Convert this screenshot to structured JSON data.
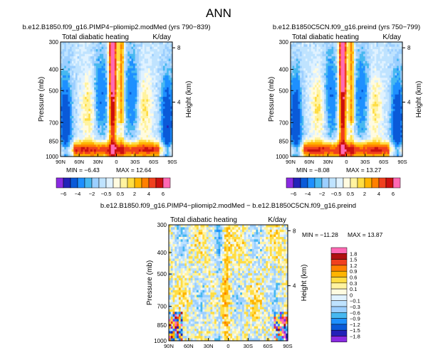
{
  "season": "ANN",
  "colors": {
    "scale_main": [
      "#8a2be2",
      "#2222b8",
      "#0a5ad8",
      "#1e90ff",
      "#47b8f0",
      "#9ccfff",
      "#bfe3ff",
      "#e0f2ff",
      "#fffbe0",
      "#fff3a0",
      "#ffdd44",
      "#ffb400",
      "#ff8000",
      "#f0401e",
      "#cc1010",
      "#ff69b4"
    ],
    "scale_diff": [
      "#8a2be2",
      "#2222b8",
      "#0a5ad8",
      "#1e90ff",
      "#47b8f0",
      "#9ccfff",
      "#bfe3ff",
      "#e0f2ff",
      "#fffbe0",
      "#fff3a0",
      "#ffdd44",
      "#ffb400",
      "#ff8000",
      "#f0401e",
      "#b01010",
      "#ff69b4"
    ]
  },
  "chart_data": [
    {
      "type": "heatmap",
      "id": "panel-a",
      "title": "b.e12.B1850.f09_g16.PIMP4−pliomip2.modMed  (yrs 790−839)",
      "field": "Total diabatic heating",
      "units": "K/day",
      "xlabel": "",
      "ylabel": "Pressure (mb)",
      "y2label": "Height (km)",
      "x_ticks": [
        "90N",
        "60N",
        "30N",
        "0",
        "30S",
        "60S",
        "90S"
      ],
      "x_range": [
        90,
        -90
      ],
      "y_ticks": [
        300,
        400,
        500,
        700,
        850,
        1000
      ],
      "y_range": [
        1000,
        300
      ],
      "height_ticks": [
        8,
        4
      ],
      "min_label": "MIN = −6.43",
      "max_label": "MAX = 12.64",
      "min": -6.43,
      "max": 12.64
    },
    {
      "type": "heatmap",
      "id": "panel-b",
      "title": "b.e12.B1850C5CN.f09_g16.preind  (yrs 750−799)",
      "field": "Total diabatic heating",
      "units": "K/day",
      "xlabel": "",
      "ylabel": "Pressure (mb)",
      "y2label": "Height (km)",
      "x_ticks": [
        "90N",
        "60N",
        "30N",
        "0",
        "30S",
        "60S",
        "90S"
      ],
      "x_range": [
        90,
        -90
      ],
      "y_ticks": [
        300,
        400,
        500,
        700,
        850,
        1000
      ],
      "y_range": [
        1000,
        300
      ],
      "height_ticks": [
        8,
        4
      ],
      "min_label": "MIN = −8.08",
      "max_label": "MAX = 13.27",
      "min": -8.08,
      "max": 13.27
    },
    {
      "type": "heatmap",
      "id": "panel-diff",
      "title": "b.e12.B1850.f09_g16.PIMP4−pliomip2.modMed − b.e12.B1850C5CN.f09_g16.preind",
      "field": "Total diabatic heating",
      "units": "K/day",
      "xlabel": "",
      "ylabel": "Pressure (mb)",
      "y2label": "Height (km)",
      "x_ticks": [
        "90N",
        "60N",
        "30N",
        "0",
        "30S",
        "60S",
        "90S"
      ],
      "x_range": [
        90,
        -90
      ],
      "y_ticks": [
        300,
        400,
        500,
        700,
        850,
        1000
      ],
      "y_range": [
        1000,
        300
      ],
      "height_ticks": [
        8,
        4
      ],
      "min_label": "MIN = −11.28",
      "max_label": "MAX = 13.87",
      "min": -11.28,
      "max": 13.87
    },
    {
      "type": "colorbar",
      "id": "colorbar-main",
      "orientation": "horizontal",
      "levels": [
        "−6",
        "−4",
        "−2",
        "−0.5",
        "0.5",
        "2",
        "4",
        "6"
      ],
      "label_slots": [
        1,
        3,
        5,
        7,
        9,
        11,
        13,
        15
      ]
    },
    {
      "type": "colorbar",
      "id": "colorbar-diff",
      "orientation": "vertical",
      "levels": [
        "1.8",
        "1.5",
        "1.2",
        "0.9",
        "0.6",
        "0.3",
        "0.1",
        "0",
        "−0.1",
        "−0.3",
        "−0.6",
        "−0.9",
        "−1.2",
        "−1.5",
        "−1.8"
      ]
    }
  ]
}
